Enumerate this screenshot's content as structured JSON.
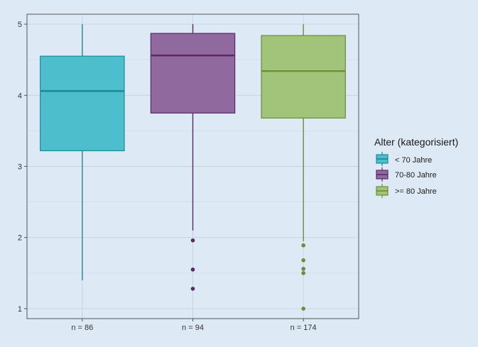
{
  "chart_data": {
    "type": "boxplot",
    "title": "",
    "xlabel": "",
    "ylabel": "",
    "ylim": [
      0.86,
      5.14
    ],
    "y_ticks": [
      1,
      2,
      3,
      4,
      5
    ],
    "grid": true,
    "legend_position": "right",
    "legend": {
      "title": "Alter (kategorisiert)",
      "entries": [
        "< 70 Jahre",
        "70-80 Jahre",
        ">= 80 Jahre"
      ]
    },
    "categories": [
      "n = 86",
      "n = 94",
      "n = 174"
    ],
    "series": [
      {
        "name": "< 70 Jahre",
        "fill": "#4dbecc",
        "stroke": "#1a8a96",
        "whisker_low": 1.4,
        "q1": 3.22,
        "median": 4.06,
        "q3": 4.55,
        "whisker_high": 5.0,
        "outliers": []
      },
      {
        "name": "70-80 Jahre",
        "fill": "#906a9e",
        "stroke": "#5b2a66",
        "whisker_low": 2.1,
        "q1": 3.75,
        "median": 4.56,
        "q3": 4.87,
        "whisker_high": 5.0,
        "outliers": [
          1.96,
          1.55,
          1.28
        ]
      },
      {
        "name": ">= 80 Jahre",
        "fill": "#a2c47a",
        "stroke": "#6b8e34",
        "whisker_low": 1.95,
        "q1": 3.68,
        "median": 4.34,
        "q3": 4.84,
        "whisker_high": 5.0,
        "outliers": [
          1.89,
          1.68,
          1.56,
          1.5,
          1.0
        ]
      }
    ]
  },
  "colors": {
    "background": "#dde9f5",
    "panel": "#dde9f5",
    "grid": "#c4d3e2",
    "axis": "#333333"
  }
}
